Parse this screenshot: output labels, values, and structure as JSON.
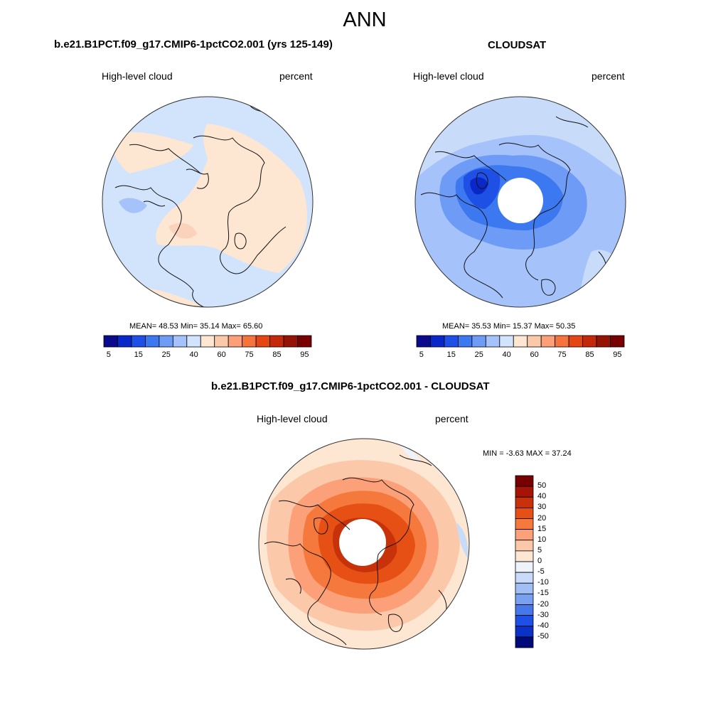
{
  "figure": {
    "title": "ANN"
  },
  "panels": [
    {
      "title": "b.e21.B1PCT.f09_g17.CMIP6-1pctCO2.001 (yrs 125-149)",
      "left_label": "High-level cloud",
      "right_label": "percent",
      "stats": {
        "mean": "48.53",
        "min": "35.14",
        "max": "65.60"
      },
      "stats_text": "MEAN=  48.53  Min=  35.14  Max=  65.60",
      "has_polar_hole": false
    },
    {
      "title": "CLOUDSAT",
      "left_label": "High-level cloud",
      "right_label": "percent",
      "stats": {
        "mean": "35.53",
        "min": "15.37",
        "max": "50.35"
      },
      "stats_text": "MEAN=  35.53  Min=  15.37  Max=  50.35",
      "has_polar_hole": true
    },
    {
      "title": "b.e21.B1PCT.f09_g17.CMIP6-1pctCO2.001 - CLOUDSAT",
      "left_label": "High-level cloud",
      "right_label": "percent",
      "stats": {
        "min": "-3.63",
        "max": "37.24"
      },
      "stats_text": "MIN =  -3.63 MAX =  37.24",
      "has_polar_hole": true
    }
  ],
  "colorbar_abs": {
    "colors": [
      "#0a0a8c",
      "#0a28c8",
      "#1e50e6",
      "#3c78f0",
      "#6e9bf5",
      "#a5c3fa",
      "#d2e4fc",
      "#fde6d2",
      "#fcc8aa",
      "#fba078",
      "#f5733c",
      "#e64614",
      "#c3280a",
      "#961405",
      "#780000"
    ],
    "tick_labels": [
      "5",
      "15",
      "25",
      "40",
      "60",
      "75",
      "85",
      "95"
    ]
  },
  "colorbar_diff": {
    "colors": [
      "#780000",
      "#a51405",
      "#c8320a",
      "#e65014",
      "#f5783c",
      "#fba078",
      "#fcc8aa",
      "#fde6d2",
      "#edf2fb",
      "#c8dcfa",
      "#a0c0f5",
      "#7aa0f0",
      "#4678eb",
      "#1e50e6",
      "#0a32c8",
      "#000a78"
    ],
    "tick_labels": [
      "50",
      "40",
      "30",
      "20",
      "15",
      "10",
      "5",
      "0",
      "-5",
      "-10",
      "-15",
      "-20",
      "-30",
      "-40",
      "-50"
    ]
  }
}
